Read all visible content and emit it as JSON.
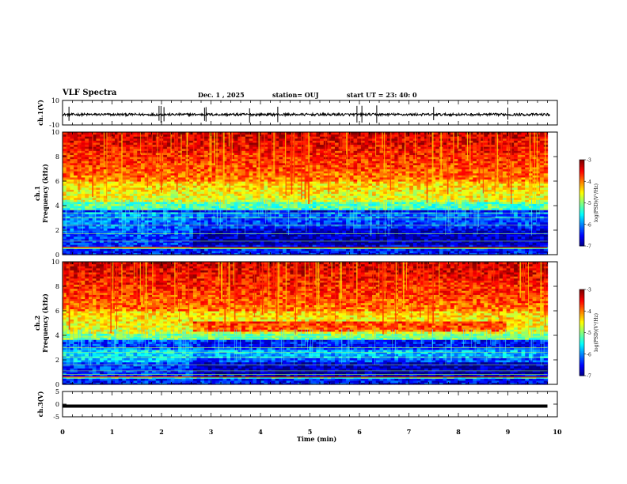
{
  "header": {
    "title": "VLF Spectra",
    "date": "Dec. 1 , 2025",
    "station": "station= OUJ",
    "start_ut": "start  UT  =   23: 40: 0"
  },
  "chart_data": [
    {
      "type": "line",
      "name": "ch1-waveform",
      "ylabel": "ch.1(V)",
      "ylim": [
        -10,
        10
      ],
      "yticks": [
        "10",
        "-10"
      ],
      "xlim": [
        0,
        10
      ],
      "baseline": -1.5,
      "noise_amplitude": 1.0,
      "spike_times": [
        0.13,
        1.95,
        1.99,
        2.05,
        2.87,
        2.9,
        3.78,
        4.35,
        5.95,
        6.05,
        6.35,
        7.5,
        9.0
      ]
    },
    {
      "type": "heatmap",
      "name": "ch1-spectrogram",
      "ylabel": "ch.1\nFrequency (kHz)",
      "ylabel_lines": [
        "ch.1",
        "Frequency  (kHz)"
      ],
      "ylim": [
        0,
        10
      ],
      "yticks": [
        "0",
        "2",
        "4",
        "6",
        "8",
        "10"
      ],
      "xlim": [
        0,
        9.8
      ],
      "colorbar": {
        "label": "log(PSD)(V²/Hz)",
        "range": [
          -7,
          -3
        ],
        "ticks": [
          "-3",
          "-4",
          "-5",
          "-6",
          "-7"
        ]
      }
    },
    {
      "type": "heatmap",
      "name": "ch2-spectrogram",
      "ylabel": "ch.2\nFrequency (kHz)",
      "ylabel_lines": [
        "ch.2",
        "Frequency  (kHz)"
      ],
      "ylim": [
        0,
        10
      ],
      "yticks": [
        "0",
        "2",
        "4",
        "6",
        "8",
        "10"
      ],
      "xlim": [
        0,
        9.8
      ],
      "colorbar": {
        "label": "log(PSD)(V²/Hz)",
        "range": [
          -7,
          -3
        ],
        "ticks": [
          "-3",
          "-4",
          "-5",
          "-6",
          "-7"
        ]
      }
    },
    {
      "type": "line",
      "name": "ch3-waveform",
      "ylabel": "ch.3(V)",
      "ylim": [
        -5,
        5
      ],
      "yticks": [
        "5",
        "0",
        "-5"
      ],
      "xlim": [
        0,
        10
      ],
      "level": -0.8
    }
  ],
  "xaxis": {
    "label": "Time  (min)",
    "ticks": [
      "0",
      "1",
      "2",
      "3",
      "4",
      "5",
      "6",
      "7",
      "8",
      "9",
      "10"
    ],
    "range": [
      0,
      10
    ]
  },
  "colors": {
    "waveform": "#000000",
    "colormap": [
      "#00008f",
      "#0000ff",
      "#00ffff",
      "#7fff7f",
      "#ffff00",
      "#ff0000",
      "#7f0000"
    ]
  }
}
